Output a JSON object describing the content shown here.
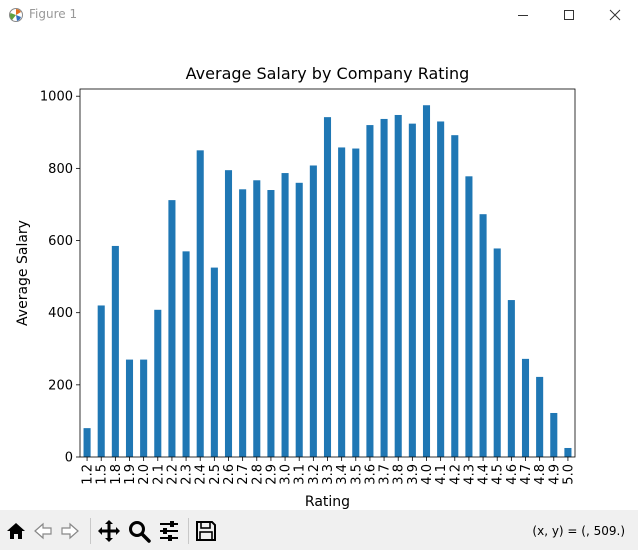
{
  "window": {
    "title": "Figure 1",
    "minimize_icon": "minimize-icon",
    "maximize_icon": "maximize-icon",
    "close_icon": "close-icon"
  },
  "toolbar": {
    "buttons": [
      "home-icon",
      "back-icon",
      "forward-icon",
      "pan-icon",
      "zoom-icon",
      "configure-subplots-icon",
      "save-icon"
    ],
    "coords": "(x, y) = (, 509.)"
  },
  "chart_data": {
    "type": "bar",
    "title": "Average Salary by Company Rating",
    "xlabel": "Rating",
    "ylabel": "Average Salary",
    "categories": [
      "1.2",
      "1.5",
      "1.8",
      "1.9",
      "2.0",
      "2.1",
      "2.2",
      "2.3",
      "2.4",
      "2.5",
      "2.6",
      "2.7",
      "2.8",
      "2.9",
      "3.0",
      "3.1",
      "3.2",
      "3.3",
      "3.4",
      "3.5",
      "3.6",
      "3.7",
      "3.8",
      "3.9",
      "4.0",
      "4.1",
      "4.2",
      "4.3",
      "4.4",
      "4.5",
      "4.6",
      "4.7",
      "4.8",
      "4.9",
      "5.0"
    ],
    "values": [
      80,
      420,
      585,
      270,
      270,
      408,
      712,
      570,
      850,
      525,
      795,
      742,
      767,
      740,
      787,
      760,
      808,
      942,
      858,
      855,
      920,
      937,
      948,
      924,
      975,
      930,
      892,
      778,
      673,
      578,
      435,
      272,
      222,
      122,
      25
    ],
    "ylim": [
      0,
      1020
    ],
    "yticks": [
      0,
      200,
      400,
      600,
      800,
      1000
    ],
    "bar_color": "#1f77b4",
    "grid": false
  }
}
